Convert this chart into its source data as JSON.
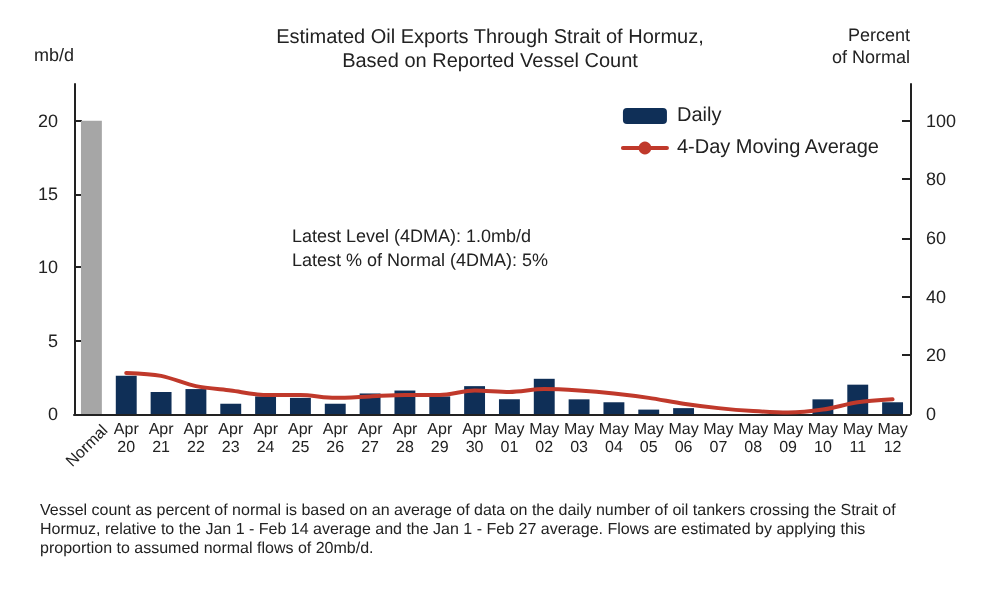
{
  "chart_data": {
    "type": "bar",
    "title": "Estimated Oil Exports Through Strait of Hormuz,\nBased on Reported Vessel Count",
    "ylabel": "mb/d",
    "y2label": "Percent\nof Normal",
    "categories": [
      "Normal",
      "Apr 20",
      "Apr 21",
      "Apr 22",
      "Apr 23",
      "Apr 24",
      "Apr 25",
      "Apr 26",
      "Apr 27",
      "Apr 28",
      "Apr 29",
      "Apr 30",
      "May 01",
      "May 02",
      "May 03",
      "May 04",
      "May 05",
      "May 06",
      "May 07",
      "May 08",
      "May 09",
      "May 10",
      "May 11",
      "May 12"
    ],
    "series": [
      {
        "name": "Daily",
        "color": "#0f2f57",
        "colors": [
          "#a6a6a6",
          "#0f2f57",
          "#0f2f57",
          "#0f2f57",
          "#0f2f57",
          "#0f2f57",
          "#0f2f57",
          "#0f2f57",
          "#0f2f57",
          "#0f2f57",
          "#0f2f57",
          "#0f2f57",
          "#0f2f57",
          "#0f2f57",
          "#0f2f57",
          "#0f2f57",
          "#0f2f57",
          "#0f2f57",
          "#0f2f57",
          "#0f2f57",
          "#0f2f57",
          "#0f2f57",
          "#0f2f57",
          "#0f2f57"
        ],
        "values": [
          20,
          2.6,
          1.5,
          1.7,
          0.7,
          1.2,
          1.1,
          0.7,
          1.4,
          1.6,
          1.2,
          1.9,
          1.0,
          2.4,
          1.0,
          0.8,
          0.3,
          0.4,
          0,
          0,
          0,
          1.0,
          2.0,
          0.8
        ]
      },
      {
        "name": "4-Day Moving Average",
        "type": "line",
        "color": "#c0392b",
        "values": [
          null,
          2.8,
          2.6,
          1.9,
          1.6,
          1.3,
          1.3,
          1.1,
          1.2,
          1.3,
          1.3,
          1.6,
          1.5,
          1.7,
          1.6,
          1.4,
          1.1,
          0.7,
          0.4,
          0.2,
          0.1,
          0.3,
          0.8,
          1.0
        ]
      }
    ],
    "ylim": [
      0,
      22.5
    ],
    "yticks": [
      0,
      5,
      10,
      15,
      20
    ],
    "y2lim": [
      0,
      112.5
    ],
    "y2ticks": [
      0,
      20,
      40,
      60,
      80,
      100
    ],
    "legend": "top right",
    "grid": false,
    "marker": "none",
    "line_style": "solid",
    "annotations": [
      "Latest Level (4DMA): 1.0mb/d\nLatest % of Normal (4DMA): 5%",
      "Vessel count as percent of normal is based on an average of data on the daily number of oil tankers crossing the Strait of Hormuz, relative to the Jan 1 - Feb 14 average and the Jan 1 - Feb 27 average. Flows are estimated by applying this proportion to assumed normal flows of 20mb/d."
    ]
  }
}
